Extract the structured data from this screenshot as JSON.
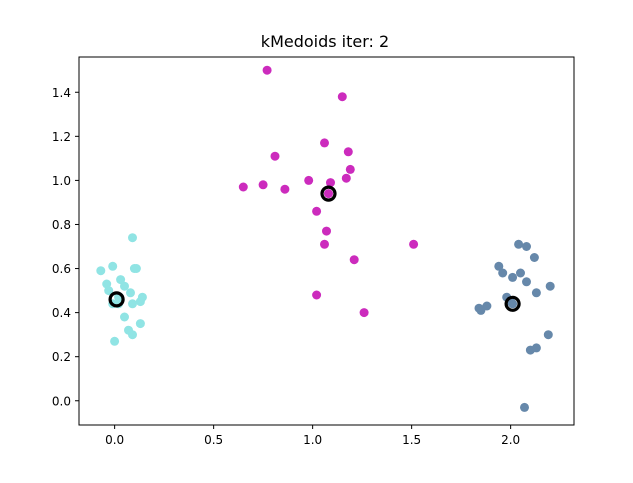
{
  "chart_data": {
    "type": "scatter",
    "title": "kMedoids iter: 2",
    "xlabel": "",
    "ylabel": "",
    "xlim": [
      -0.18,
      2.32
    ],
    "ylim": [
      -0.11,
      1.56
    ],
    "xticks": [
      0.0,
      0.5,
      1.0,
      1.5,
      2.0
    ],
    "xtick_labels": [
      "0.0",
      "0.5",
      "1.0",
      "1.5",
      "2.0"
    ],
    "yticks": [
      0.0,
      0.2,
      0.4,
      0.6,
      0.8,
      1.0,
      1.2,
      1.4
    ],
    "ytick_labels": [
      "0.0",
      "0.2",
      "0.4",
      "0.6",
      "0.8",
      "1.0",
      "1.2",
      "1.4"
    ],
    "grid": false,
    "legend": false,
    "series": [
      {
        "color": "#90e4e4",
        "x": [
          0.09,
          -0.07,
          -0.01,
          0.1,
          0.11,
          0.03,
          -0.04,
          0.05,
          -0.03,
          0.08,
          0.14,
          0.13,
          -0.01,
          0.02,
          0.09,
          0.05,
          0.13,
          0.07,
          0.09,
          0.0,
          0.02
        ],
        "y": [
          0.74,
          0.59,
          0.61,
          0.6,
          0.6,
          0.55,
          0.53,
          0.52,
          0.5,
          0.49,
          0.47,
          0.45,
          0.44,
          0.44,
          0.44,
          0.38,
          0.35,
          0.32,
          0.3,
          0.27,
          0.47
        ]
      },
      {
        "color": "#cc2bbd",
        "x": [
          0.77,
          1.15,
          0.81,
          1.06,
          1.18,
          1.19,
          0.98,
          1.17,
          0.65,
          0.75,
          0.86,
          1.09,
          1.02,
          1.07,
          1.06,
          1.51,
          1.21,
          1.02,
          1.26,
          1.08
        ],
        "y": [
          1.5,
          1.38,
          1.11,
          1.17,
          1.13,
          1.05,
          1.0,
          1.01,
          0.97,
          0.98,
          0.96,
          0.99,
          0.86,
          0.77,
          0.71,
          0.71,
          0.64,
          0.48,
          0.4,
          0.94
        ]
      },
      {
        "color": "#6688aa",
        "x": [
          2.04,
          2.08,
          2.12,
          1.94,
          1.96,
          2.05,
          2.01,
          2.08,
          2.2,
          2.13,
          1.98,
          2.0,
          1.88,
          1.84,
          1.85,
          2.19,
          2.13,
          2.1,
          2.07,
          2.01
        ],
        "y": [
          0.71,
          0.7,
          0.65,
          0.61,
          0.58,
          0.58,
          0.56,
          0.54,
          0.52,
          0.49,
          0.47,
          0.45,
          0.43,
          0.42,
          0.41,
          0.3,
          0.24,
          0.23,
          -0.03,
          0.44
        ]
      }
    ],
    "medoids": {
      "color": "#000000",
      "x": [
        0.01,
        1.08,
        2.01
      ],
      "y": [
        0.46,
        0.94,
        0.44
      ]
    }
  }
}
